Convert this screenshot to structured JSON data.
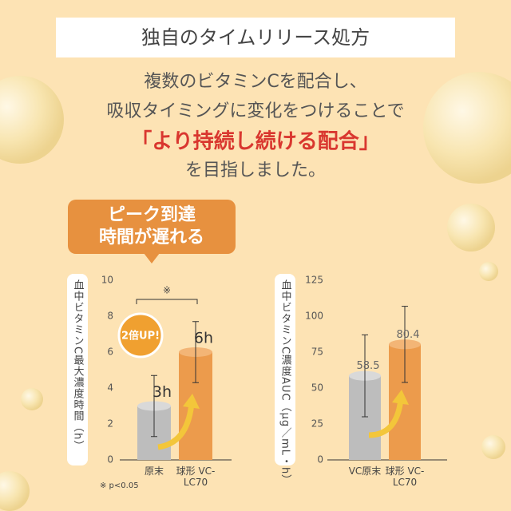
{
  "header": {
    "title": "独自のタイムリリース処方"
  },
  "body": {
    "lines": [
      "複数のビタミンCを配合し、",
      "吸収タイミングに変化をつけることで"
    ],
    "highlight": "「より持続し続ける配合」",
    "last_line": "を目指しました。"
  },
  "callout": {
    "lines": [
      "ピーク到達",
      "時間が遅れる"
    ]
  },
  "chart_data": [
    {
      "type": "bar",
      "y_label": "血中ビタミンC最大濃度時間（h）",
      "categories": [
        "原末",
        "球形 VC-LC70"
      ],
      "values": [
        3,
        6
      ],
      "value_labels": [
        "3h",
        "6h"
      ],
      "errors": [
        1.7,
        1.7
      ],
      "colors": [
        "#bdbdbd",
        "#ec9b4c"
      ],
      "ylim": [
        0,
        10
      ],
      "yticks": [
        0,
        2,
        4,
        6,
        8,
        10
      ],
      "annotations": [
        "※",
        "2倍UP!"
      ],
      "note": "※ p<0.05"
    },
    {
      "type": "bar",
      "y_label": "血中ビタミンC濃度AUC（μg／mL・h）",
      "categories": [
        "VC原末",
        "球形 VC-LC70"
      ],
      "values": [
        58.5,
        80.4
      ],
      "errors": [
        28.5,
        26.5
      ],
      "colors": [
        "#bdbdbd",
        "#ec9b4c"
      ],
      "ylim": [
        0,
        125
      ],
      "yticks": [
        0,
        25,
        50,
        75,
        100,
        125
      ]
    }
  ]
}
